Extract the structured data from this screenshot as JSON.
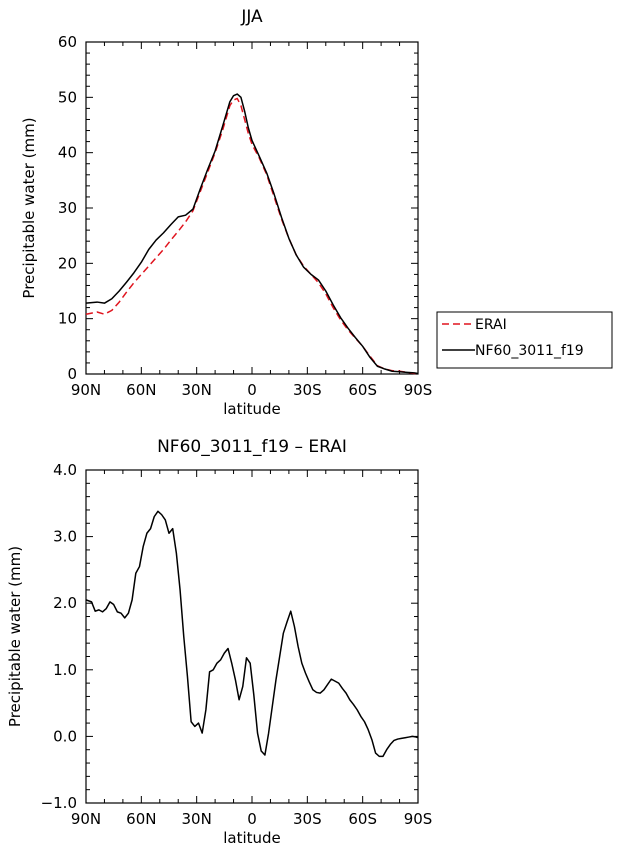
{
  "chart_data": [
    {
      "type": "line",
      "title": "JJA",
      "xlabel": "latitude",
      "ylabel": "Precipitable water (mm)",
      "xlim": [
        90,
        -90
      ],
      "ylim": [
        0,
        60
      ],
      "x_ticks": [
        90,
        60,
        30,
        0,
        -30,
        -60,
        -90
      ],
      "x_tick_labels": [
        "90N",
        "60N",
        "30N",
        "0",
        "30S",
        "60S",
        "90S"
      ],
      "y_ticks": [
        0,
        10,
        20,
        30,
        40,
        50,
        60
      ],
      "y_tick_labels": [
        "0",
        "10",
        "20",
        "30",
        "40",
        "50",
        "60"
      ],
      "legend_position": "right",
      "series": [
        {
          "name": "ERAI",
          "color": "#e0141e",
          "dash": "dashed",
          "x": [
            90,
            84,
            80,
            76,
            72,
            68,
            64,
            60,
            56,
            52,
            48,
            44,
            40,
            36,
            32,
            28,
            24,
            20,
            16,
            12,
            10,
            8,
            6,
            4,
            2,
            0,
            -4,
            -8,
            -12,
            -16,
            -20,
            -24,
            -28,
            -32,
            -36,
            -40,
            -44,
            -48,
            -52,
            -56,
            -60,
            -64,
            -68,
            -72,
            -76,
            -80,
            -84,
            -88,
            -90
          ],
          "y": [
            10.8,
            11.2,
            10.8,
            11.5,
            13.0,
            14.8,
            16.5,
            18.0,
            19.5,
            21.0,
            22.5,
            24.2,
            25.8,
            27.5,
            29.5,
            33.0,
            36.5,
            40.0,
            44.0,
            48.5,
            49.5,
            49.8,
            48.5,
            46.0,
            43.5,
            41.5,
            39.0,
            36.0,
            32.0,
            28.0,
            24.5,
            21.5,
            19.5,
            18.0,
            16.5,
            14.5,
            12.0,
            9.8,
            8.0,
            6.5,
            5.0,
            3.2,
            1.5,
            0.9,
            0.6,
            0.5,
            0.3,
            0.1,
            0.05
          ]
        },
        {
          "name": "NF60_3011_f19",
          "color": "#000000",
          "dash": "solid",
          "x": [
            90,
            84,
            80,
            76,
            72,
            68,
            64,
            60,
            56,
            52,
            48,
            44,
            40,
            36,
            32,
            28,
            24,
            20,
            16,
            12,
            10,
            8,
            6,
            4,
            2,
            0,
            -4,
            -8,
            -12,
            -16,
            -20,
            -24,
            -28,
            -32,
            -36,
            -40,
            -44,
            -48,
            -52,
            -56,
            -60,
            -64,
            -68,
            -72,
            -76,
            -80,
            -84,
            -88,
            -90
          ],
          "y": [
            12.8,
            13.0,
            12.8,
            13.6,
            15.0,
            16.6,
            18.3,
            20.2,
            22.5,
            24.2,
            25.5,
            27.0,
            28.4,
            28.7,
            29.8,
            33.5,
            37.0,
            40.3,
            44.7,
            49.2,
            50.3,
            50.6,
            50.0,
            47.5,
            44.5,
            42.2,
            39.3,
            36.3,
            32.5,
            28.3,
            24.5,
            21.5,
            19.3,
            18.0,
            17.0,
            15.0,
            12.5,
            10.2,
            8.3,
            6.6,
            5.0,
            3.0,
            1.4,
            0.9,
            0.5,
            0.4,
            0.3,
            0.2,
            0.1
          ]
        }
      ]
    },
    {
      "type": "line",
      "title": "NF60_3011_f19 – ERAI",
      "xlabel": "latitude",
      "ylabel": "Precipitable water (mm)",
      "xlim": [
        90,
        -90
      ],
      "ylim": [
        -1.0,
        4.0
      ],
      "x_ticks": [
        90,
        60,
        30,
        0,
        -30,
        -60,
        -90
      ],
      "x_tick_labels": [
        "90N",
        "60N",
        "30N",
        "0",
        "30S",
        "60S",
        "90S"
      ],
      "y_ticks": [
        -1.0,
        0.0,
        1.0,
        2.0,
        3.0,
        4.0
      ],
      "y_tick_labels": [
        "−1.0",
        "0.0",
        "1.0",
        "2.0",
        "3.0",
        "4.0"
      ],
      "series": [
        {
          "color": "#000000",
          "dash": "solid",
          "x": [
            90,
            87,
            85,
            83,
            81,
            79,
            77,
            75,
            73,
            71,
            69,
            67,
            65,
            63,
            61,
            59,
            57,
            55,
            53,
            51,
            49,
            47,
            45,
            43,
            41,
            39,
            37,
            35,
            33,
            31,
            29,
            27,
            25,
            23,
            21,
            19,
            17,
            15,
            13,
            11,
            9,
            7,
            5,
            3,
            1,
            -1,
            -3,
            -5,
            -7,
            -9,
            -11,
            -13,
            -15,
            -17,
            -19,
            -21,
            -23,
            -25,
            -27,
            -29,
            -31,
            -33,
            -35,
            -37,
            -39,
            -41,
            -43,
            -45,
            -47,
            -49,
            -51,
            -53,
            -55,
            -57,
            -59,
            -61,
            -63,
            -65,
            -67,
            -69,
            -71,
            -73,
            -75,
            -77,
            -79,
            -81,
            -83,
            -85,
            -87,
            -89,
            -90
          ],
          "y": [
            2.05,
            2.02,
            1.88,
            1.9,
            1.87,
            1.92,
            2.02,
            1.98,
            1.87,
            1.85,
            1.78,
            1.85,
            2.05,
            2.45,
            2.55,
            2.85,
            3.05,
            3.12,
            3.3,
            3.38,
            3.33,
            3.25,
            3.05,
            3.12,
            2.75,
            2.2,
            1.5,
            0.9,
            0.22,
            0.15,
            0.2,
            0.05,
            0.4,
            0.97,
            1.0,
            1.1,
            1.15,
            1.25,
            1.32,
            1.1,
            0.85,
            0.55,
            0.75,
            1.18,
            1.1,
            0.62,
            0.05,
            -0.22,
            -0.28,
            0.05,
            0.45,
            0.85,
            1.2,
            1.55,
            1.72,
            1.88,
            1.65,
            1.35,
            1.1,
            0.95,
            0.82,
            0.7,
            0.66,
            0.65,
            0.7,
            0.78,
            0.86,
            0.83,
            0.8,
            0.72,
            0.65,
            0.55,
            0.48,
            0.4,
            0.3,
            0.22,
            0.1,
            -0.05,
            -0.25,
            -0.3,
            -0.3,
            -0.2,
            -0.12,
            -0.06,
            -0.04,
            -0.03,
            -0.02,
            -0.01,
            0.0,
            -0.01,
            -0.02
          ]
        }
      ]
    }
  ]
}
